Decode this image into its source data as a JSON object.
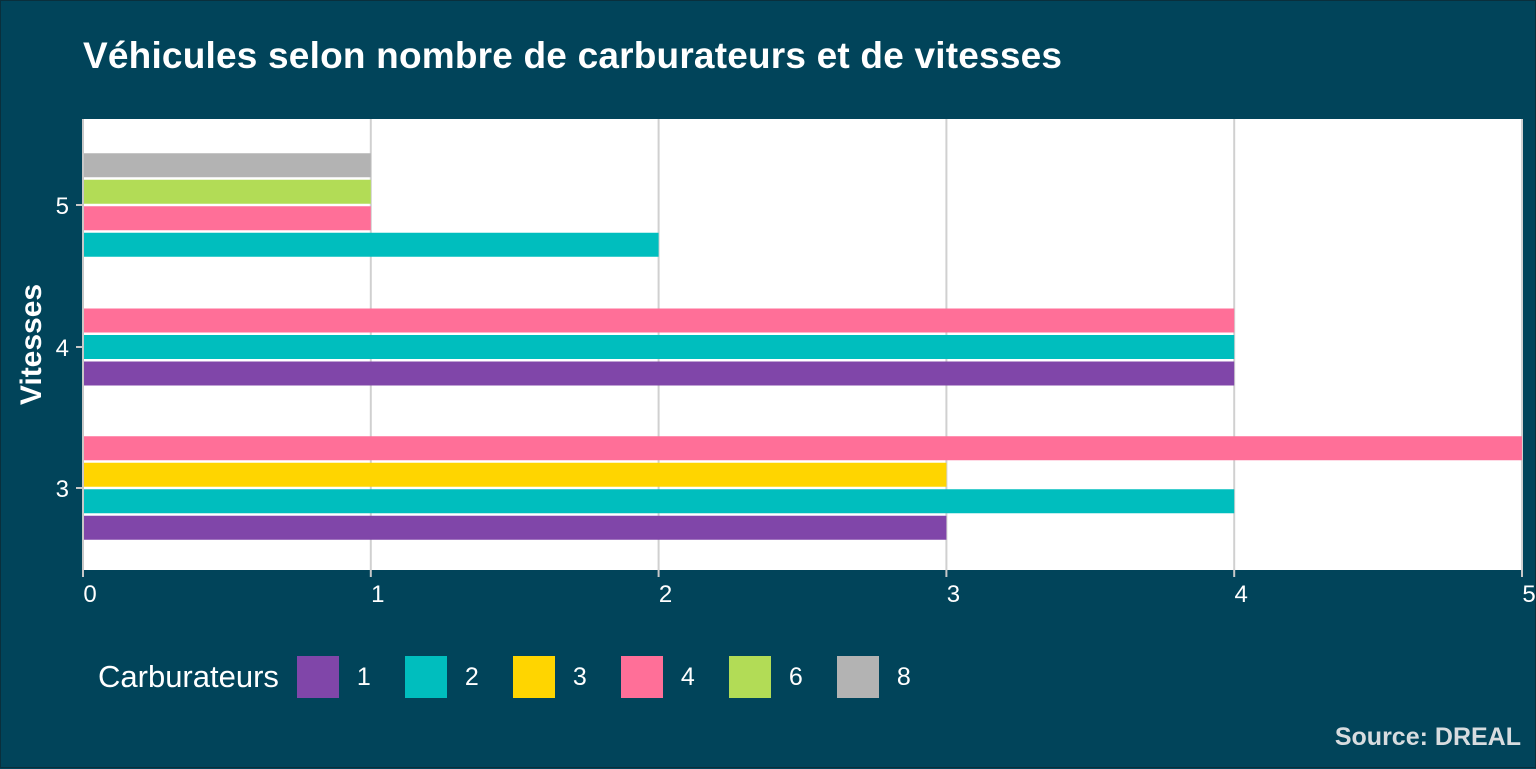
{
  "chart_data": {
    "type": "bar",
    "orientation": "horizontal",
    "title": "Véhicules selon nombre de carburateurs et de vitesses",
    "ylabel": "Vitesses",
    "xlabel": "",
    "categories": [
      "3",
      "4",
      "5"
    ],
    "xlim": [
      0,
      5
    ],
    "xticks": [
      "0",
      "1",
      "2",
      "3",
      "4",
      "5"
    ],
    "grid": true,
    "legend_title": "Carburateurs",
    "legend_position": "bottom",
    "series": [
      {
        "name": "1",
        "color": "#8046a9",
        "values": [
          3,
          4,
          null
        ]
      },
      {
        "name": "2",
        "color": "#00bebe",
        "values": [
          4,
          4,
          2
        ]
      },
      {
        "name": "3",
        "color": "#ffd500",
        "values": [
          3,
          null,
          null
        ]
      },
      {
        "name": "4",
        "color": "#ff6f98",
        "values": [
          5,
          4,
          1
        ]
      },
      {
        "name": "6",
        "color": "#b2dc56",
        "values": [
          null,
          null,
          1
        ]
      },
      {
        "name": "8",
        "color": "#b3b3b3",
        "values": [
          null,
          null,
          1
        ]
      }
    ],
    "caption": "Source: DREAL"
  }
}
